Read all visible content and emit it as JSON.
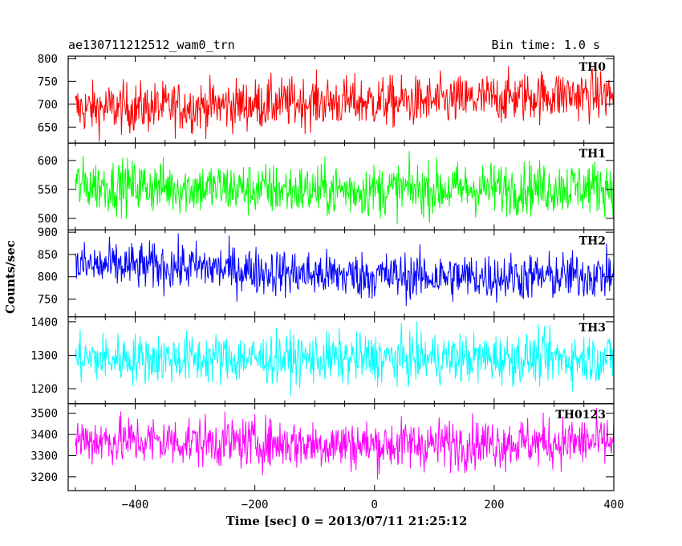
{
  "header": {
    "title": "ae130711212512_wam0_trn",
    "bin_time": "Bin time: 1.0 s"
  },
  "chart_data": {
    "type": "line",
    "title": "ae130711212512_wam0_trn",
    "xlabel": "Time [sec] 0 = 2013/07/11 21:25:12",
    "ylabel": "Counts/sec",
    "xlim": [
      -512,
      400
    ],
    "x_ticks": [
      -400,
      -200,
      0,
      200,
      400
    ],
    "x_tick_labels": [
      "−400",
      "−200",
      "0",
      "200",
      "400"
    ],
    "x_start": -500,
    "x_end": 400,
    "x_step": 1,
    "panels": [
      {
        "name": "TH0",
        "color": "#ff0000",
        "ylim": [
          615,
          805
        ],
        "y_ticks": [
          650,
          700,
          750,
          800
        ],
        "trend": [
          [
            -500,
            690
          ],
          [
            -300,
            695
          ],
          [
            -100,
            705
          ],
          [
            100,
            705
          ],
          [
            300,
            720
          ],
          [
            400,
            720
          ]
        ],
        "noise": 28
      },
      {
        "name": "TH1",
        "color": "#00ff00",
        "ylim": [
          480,
          630
        ],
        "y_ticks": [
          500,
          550,
          600
        ],
        "trend": [
          [
            -500,
            558
          ],
          [
            -100,
            548
          ],
          [
            100,
            550
          ],
          [
            400,
            555
          ]
        ],
        "noise": 23
      },
      {
        "name": "TH2",
        "color": "#0000ff",
        "ylim": [
          710,
          905
        ],
        "y_ticks": [
          750,
          800,
          850,
          900
        ],
        "trend": [
          [
            -500,
            825
          ],
          [
            -300,
            822
          ],
          [
            -100,
            805
          ],
          [
            100,
            800
          ],
          [
            300,
            800
          ],
          [
            400,
            805
          ]
        ],
        "noise": 27
      },
      {
        "name": "TH3",
        "color": "#00ffff",
        "ylim": [
          1155,
          1415
        ],
        "y_ticks": [
          1200,
          1300,
          1400
        ],
        "trend": [
          [
            -500,
            1290
          ],
          [
            0,
            1290
          ],
          [
            400,
            1292
          ]
        ],
        "noise": 38
      },
      {
        "name": "TH0123",
        "color": "#ff00ff",
        "ylim": [
          3135,
          3545
        ],
        "y_ticks": [
          3200,
          3300,
          3400,
          3500
        ],
        "trend": [
          [
            -500,
            3375
          ],
          [
            -200,
            3360
          ],
          [
            0,
            3350
          ],
          [
            200,
            3360
          ],
          [
            400,
            3365
          ]
        ],
        "noise": 60
      }
    ]
  }
}
